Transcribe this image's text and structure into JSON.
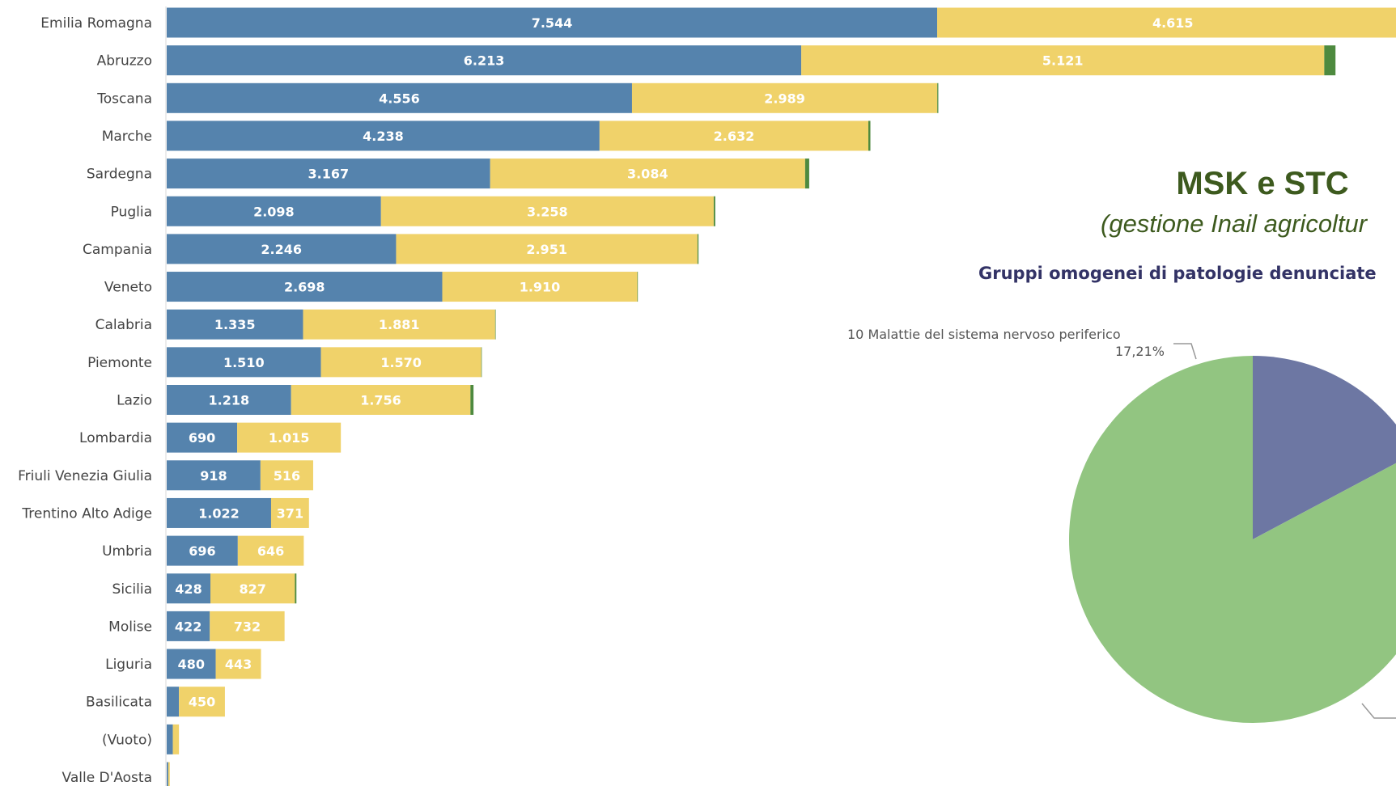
{
  "title": "MSK e STC",
  "subtitle": "(gestione Inail agricoltur",
  "chart_data": [
    {
      "type": "bar",
      "orientation": "horizontal",
      "stacked": true,
      "categories": [
        "Emilia Romagna",
        "Abruzzo",
        "Toscana",
        "Marche",
        "Sardegna",
        "Puglia",
        "Campania",
        "Veneto",
        "Calabria",
        "Piemonte",
        "Lazio",
        "Lombardia",
        "Friuli Venezia Giulia",
        "Trentino Alto Adige",
        "Umbria",
        "Sicilia",
        "Molise",
        "Liguria",
        "Basilicata",
        "(Vuoto)",
        "Valle D'Aosta"
      ],
      "series": [
        {
          "color": "#5583ad",
          "values": [
            7544,
            6213,
            4556,
            4238,
            3167,
            2098,
            2246,
            2698,
            1335,
            1510,
            1218,
            690,
            918,
            1022,
            696,
            428,
            422,
            480,
            120,
            60,
            15
          ],
          "labels": [
            "7.544",
            "6.213",
            "4.556",
            "4.238",
            "3.167",
            "2.098",
            "2.246",
            "2.698",
            "1.335",
            "1.510",
            "1.218",
            "690",
            "918",
            "1.022",
            "696",
            "428",
            "422",
            "480",
            "",
            "",
            ""
          ]
        },
        {
          "color": "#f0d26a",
          "values": [
            4615,
            5121,
            2989,
            2632,
            3084,
            3258,
            2951,
            1910,
            1881,
            1570,
            1756,
            1015,
            516,
            371,
            646,
            827,
            732,
            443,
            450,
            60,
            15
          ],
          "labels": [
            "4.615",
            "5.121",
            "2.989",
            "2.632",
            "3.084",
            "3.258",
            "2.951",
            "1.910",
            "1.881",
            "1.570",
            "1.756",
            "1.015",
            "516",
            "371",
            "646",
            "827",
            "732",
            "443",
            "450",
            "",
            ""
          ]
        },
        {
          "color": "#4e8a3f",
          "values": [
            0,
            110,
            10,
            20,
            40,
            15,
            10,
            5,
            5,
            5,
            30,
            0,
            0,
            0,
            0,
            15,
            0,
            0,
            0,
            0,
            0
          ],
          "labels": []
        }
      ]
    },
    {
      "type": "pie",
      "title": "Gruppi omogenei di patologie denunciate",
      "slices": [
        {
          "name": "10 Malattie del sistema nervoso periferico",
          "value": 17.21,
          "label": "17,21%",
          "color": "#6d77a3"
        },
        {
          "name": "",
          "value": 82.79,
          "label": "",
          "color": "#92c581"
        }
      ]
    }
  ]
}
